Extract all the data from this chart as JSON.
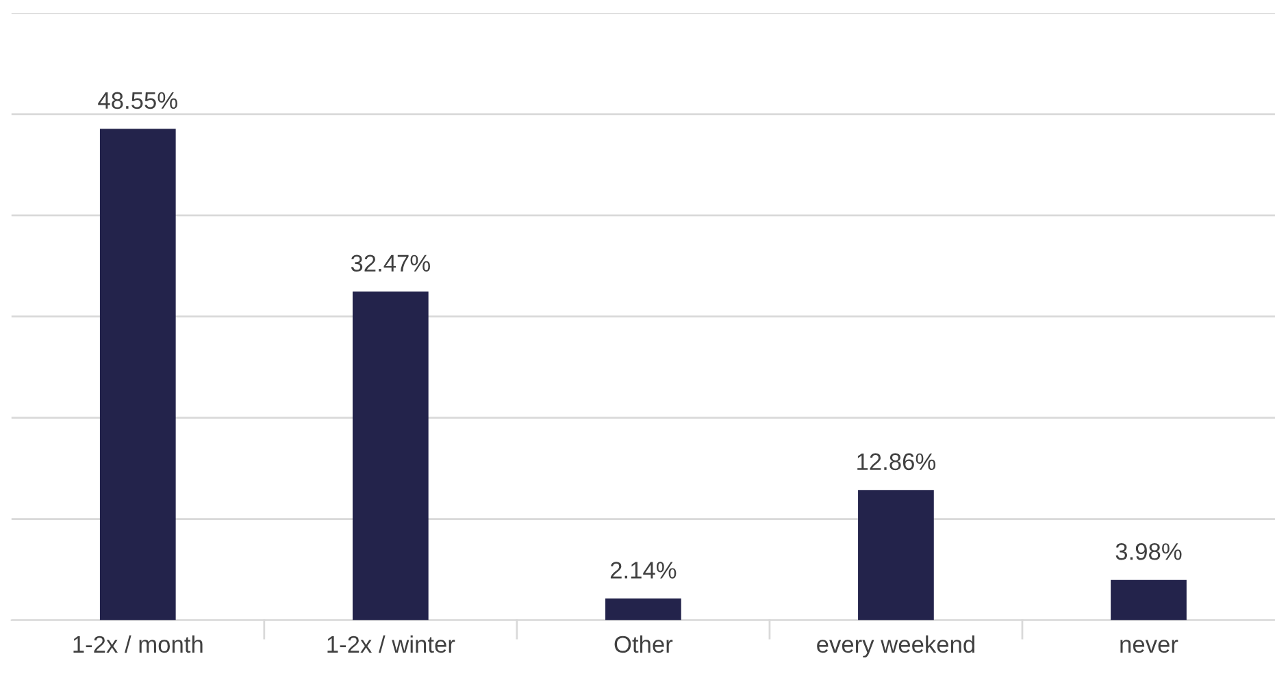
{
  "chart_data": {
    "type": "bar",
    "categories": [
      "1-2x / month",
      "1-2x / winter",
      "Other",
      "every weekend",
      "never"
    ],
    "values": [
      48.55,
      32.47,
      2.14,
      12.86,
      3.98
    ],
    "value_labels": [
      "48.55%",
      "32.47%",
      "2.14%",
      "12.86%",
      "3.98%"
    ],
    "color": "#23234b",
    "ylim": [
      0,
      60
    ],
    "yticks": [
      {
        "value": 0,
        "label": null
      },
      {
        "value": 10,
        "label": null
      },
      {
        "value": 20,
        "label": null
      },
      {
        "value": 30,
        "label": null
      },
      {
        "value": 40,
        "label": null
      },
      {
        "value": 50,
        "label": null
      },
      {
        "value": 60,
        "label": null
      }
    ],
    "tick_labels": "x",
    "grid": "y"
  }
}
